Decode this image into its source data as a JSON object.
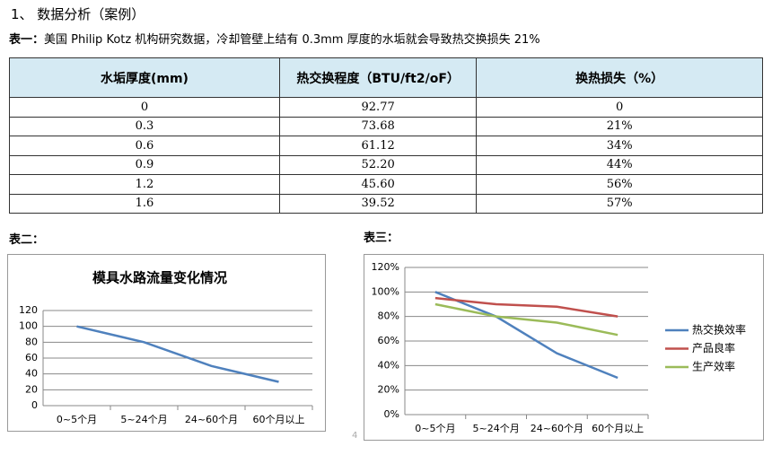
{
  "heading": "1、  数据分析（案例）",
  "caption": {
    "label": "表一：",
    "text": "美国 Philip Kotz 机构研究数据，冷却管壁上结有 0.3mm 厚度的水垢就会导致热交换损失 21%"
  },
  "table": {
    "header": [
      "水垢厚度(mm)",
      "热交换程度（BTU/ft2/oF）",
      "换热损失（%）"
    ],
    "rows": [
      [
        "0",
        "92.77",
        "0"
      ],
      [
        "0.3",
        "73.68",
        "21%"
      ],
      [
        "0.6",
        "61.12",
        "34%"
      ],
      [
        "0.9",
        "52.20",
        "44%"
      ],
      [
        "1.2",
        "45.60",
        "56%"
      ],
      [
        "1.6",
        "39.52",
        "57%"
      ]
    ]
  },
  "chart_labels": [
    "表二：",
    "表三："
  ],
  "page_number": "4",
  "chart_data": [
    {
      "type": "line",
      "title": "模具水路流量变化情况",
      "categories": [
        "0~5个月",
        "5~24个月",
        "24~60个月",
        "60个月以上"
      ],
      "series": [
        {
          "name": null,
          "color": "#4f81bd",
          "values": [
            100,
            80,
            50,
            30
          ]
        }
      ],
      "ylim": [
        0,
        120
      ],
      "yticks": [
        0,
        20,
        40,
        60,
        80,
        100,
        120
      ],
      "grid": true,
      "legend": false
    },
    {
      "type": "line",
      "categories": [
        "0~5个月",
        "5~24个月",
        "24~60个月",
        "60个月以上"
      ],
      "series": [
        {
          "name": "热交换效率",
          "color": "#4f81bd",
          "values": [
            100,
            80,
            50,
            30
          ]
        },
        {
          "name": "产品良率",
          "color": "#c0504d",
          "values": [
            95,
            90,
            88,
            80
          ]
        },
        {
          "name": "生产效率",
          "color": "#9bbb59",
          "values": [
            90,
            80,
            75,
            65
          ]
        }
      ],
      "ylim": [
        0,
        120
      ],
      "yticks": [
        {
          "value": 0,
          "label": "0%"
        },
        {
          "value": 20,
          "label": "20%"
        },
        {
          "value": 40,
          "label": "40%"
        },
        {
          "value": 60,
          "label": "60%"
        },
        {
          "value": 80,
          "label": "80%"
        },
        {
          "value": 100,
          "label": "100%"
        },
        {
          "value": 120,
          "label": "120%"
        }
      ],
      "grid": true,
      "legend": "right"
    }
  ]
}
